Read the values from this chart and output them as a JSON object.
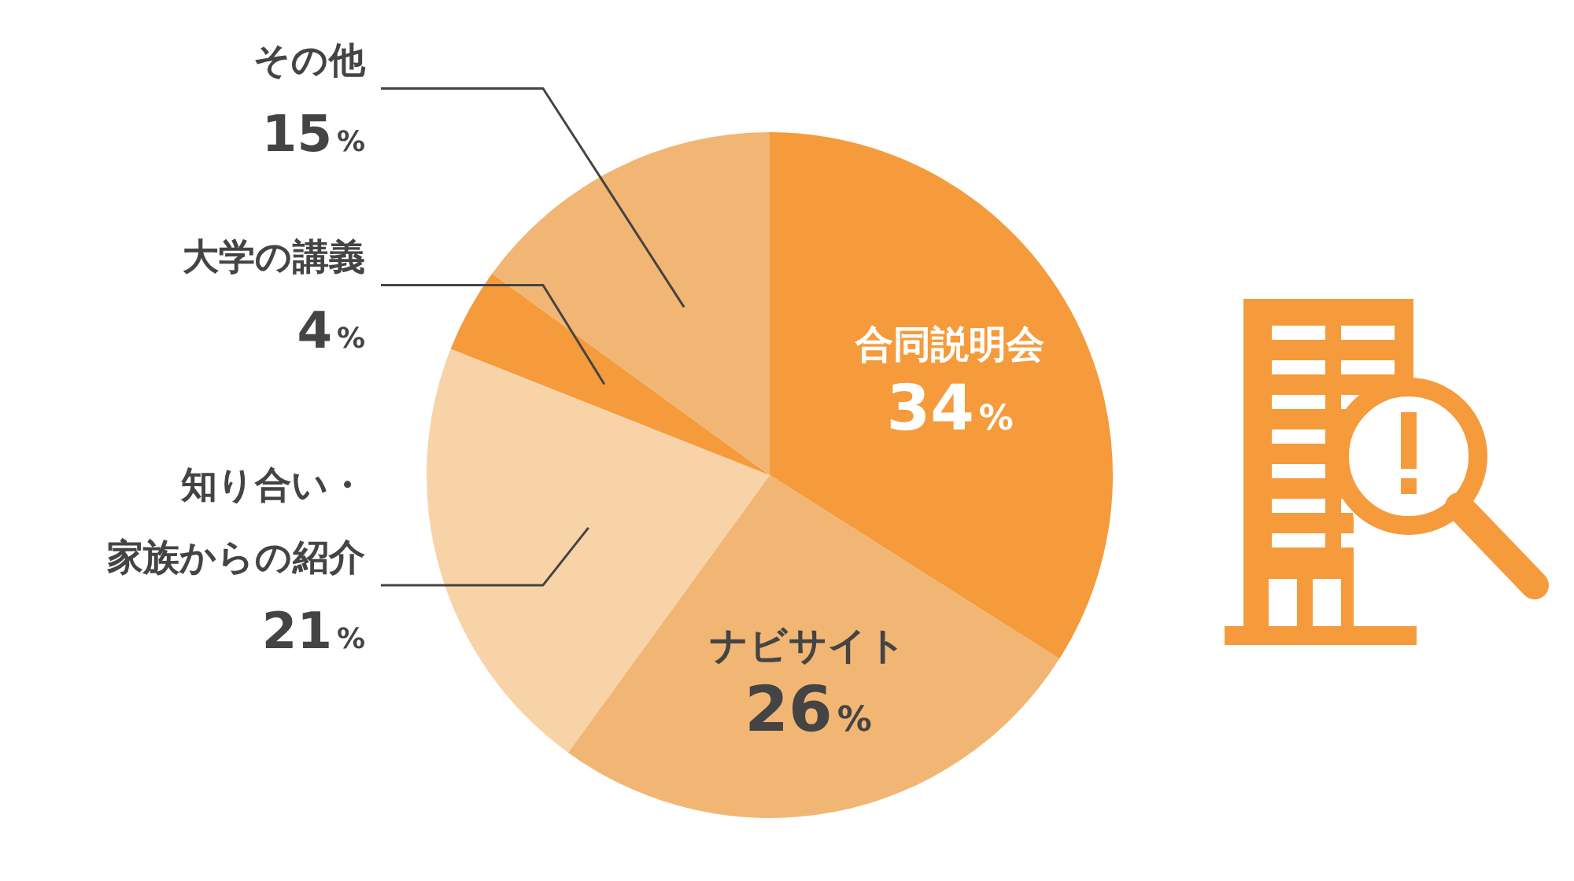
{
  "chart_data": {
    "type": "pie",
    "categories": [
      "合同説明会",
      "ナビサイト",
      "知り合い・家族からの紹介",
      "大学の講義",
      "その他"
    ],
    "values": [
      34,
      26,
      21,
      4,
      15
    ],
    "value_labels": [
      "34%",
      "26%",
      "21%",
      "4%",
      "15%"
    ],
    "colors": [
      "#f59b3c",
      "#f2b674",
      "#f8d3a8",
      "#f59b3c",
      "#f2b674"
    ]
  }
}
